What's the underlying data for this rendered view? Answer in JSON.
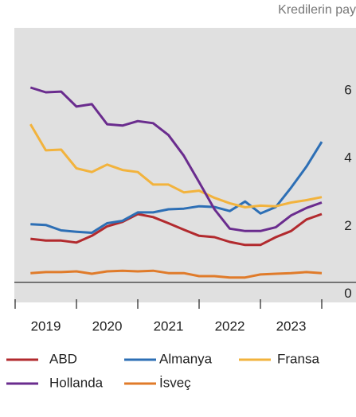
{
  "chart_data": {
    "type": "line",
    "title": "Kredilerin pay",
    "year_labels": [
      "2019",
      "2020",
      "2021",
      "2022",
      "2023"
    ],
    "x": [
      2019.25,
      2019.5,
      2019.75,
      2020.0,
      2020.25,
      2020.5,
      2020.75,
      2021.0,
      2021.25,
      2021.5,
      2021.75,
      2022.0,
      2022.25,
      2022.5,
      2022.75,
      2023.0,
      2023.25,
      2023.5,
      2023.75,
      2024.0
    ],
    "xlim": [
      2019,
      2024
    ],
    "xticks": [
      2019,
      2020,
      2021,
      2022,
      2023,
      2024
    ],
    "ylim": [
      -0.5,
      7.5
    ],
    "yticks": [
      0,
      2,
      4,
      6
    ],
    "series": [
      {
        "name": "ABD",
        "color": "#b22a2e",
        "values": [
          1.28,
          1.23,
          1.23,
          1.17,
          1.37,
          1.65,
          1.78,
          2.01,
          1.92,
          1.74,
          1.55,
          1.37,
          1.33,
          1.19,
          1.1,
          1.1,
          1.33,
          1.51,
          1.85,
          2.01
        ]
      },
      {
        "name": "Almanya",
        "color": "#2d6fb5",
        "values": [
          1.71,
          1.69,
          1.53,
          1.49,
          1.46,
          1.74,
          1.81,
          2.06,
          2.06,
          2.15,
          2.17,
          2.24,
          2.22,
          2.1,
          2.38,
          2.03,
          2.22,
          2.79,
          3.41,
          4.14
        ]
      },
      {
        "name": "Fransa",
        "color": "#f2b33d",
        "values": [
          4.66,
          3.89,
          3.91,
          3.36,
          3.25,
          3.47,
          3.31,
          3.25,
          2.88,
          2.88,
          2.65,
          2.7,
          2.49,
          2.33,
          2.21,
          2.26,
          2.24,
          2.35,
          2.42,
          2.51
        ]
      },
      {
        "name": "Hollanda",
        "color": "#6a2c8e",
        "values": [
          5.74,
          5.6,
          5.62,
          5.18,
          5.25,
          4.66,
          4.62,
          4.75,
          4.69,
          4.34,
          3.73,
          2.95,
          2.15,
          1.58,
          1.51,
          1.51,
          1.62,
          1.97,
          2.19,
          2.35
        ]
      },
      {
        "name": "İsveç",
        "color": "#e07b2a",
        "values": [
          0.27,
          0.3,
          0.3,
          0.32,
          0.25,
          0.32,
          0.34,
          0.32,
          0.34,
          0.27,
          0.27,
          0.18,
          0.18,
          0.14,
          0.14,
          0.23,
          0.25,
          0.27,
          0.3,
          0.27
        ]
      }
    ]
  }
}
